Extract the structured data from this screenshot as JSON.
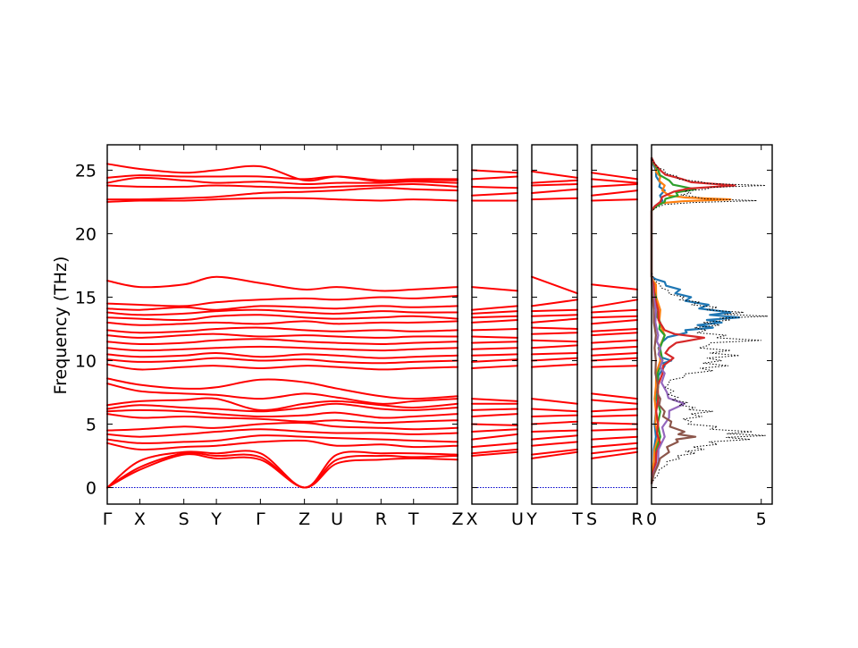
{
  "chart_data": {
    "type": "line",
    "ylabel": "Frequency (THz)",
    "ylim": [
      -1.3,
      27
    ],
    "yticks": [
      0,
      5,
      10,
      15,
      20,
      25
    ],
    "dos_xlim": [
      0,
      5.5
    ],
    "dos_xticks": [
      0,
      5
    ],
    "dos_xtick_labels": [
      "0",
      "5"
    ],
    "path_segments": [
      {
        "labels": [
          "Γ",
          "X",
          "S",
          "Y",
          "Γ",
          "Z",
          "U",
          "R",
          "T",
          "Z"
        ],
        "positions": [
          0,
          0.85,
          2.0,
          2.85,
          4.0,
          5.15,
          6.0,
          7.15,
          8.0,
          9.15
        ]
      },
      {
        "labels": [
          "X",
          "U"
        ],
        "positions": [
          0,
          1.15
        ]
      },
      {
        "labels": [
          "Y",
          "T"
        ],
        "positions": [
          0,
          1.15
        ]
      },
      {
        "labels": [
          "S",
          "R"
        ],
        "positions": [
          0,
          1.15
        ]
      }
    ],
    "band_color": "#ff0000",
    "zero_line_color": "#0000cc",
    "dos_colors": [
      "#1f77b4",
      "#ff7f0e",
      "#2ca02c",
      "#d62728",
      "#9467bd",
      "#8c564b"
    ],
    "bands_main": [
      [
        0,
        1.4,
        2.6,
        2.3,
        2.2,
        0,
        1.9,
        2.2,
        2.3,
        2.2
      ],
      [
        0,
        1.6,
        2.7,
        2.5,
        2.4,
        0,
        2.2,
        2.5,
        2.4,
        2.5
      ],
      [
        0,
        2.1,
        2.8,
        2.7,
        2.7,
        0,
        2.6,
        2.7,
        2.7,
        2.6
      ],
      [
        3.5,
        3.0,
        3.2,
        3.3,
        3.6,
        3.7,
        3.3,
        3.4,
        3.2,
        3.3
      ],
      [
        3.8,
        3.5,
        3.6,
        3.7,
        4.1,
        4.0,
        3.9,
        3.8,
        3.7,
        3.6
      ],
      [
        4.2,
        4.0,
        4.2,
        4.4,
        4.6,
        4.4,
        4.3,
        4.3,
        4.2,
        4.3
      ],
      [
        4.5,
        4.6,
        4.8,
        4.7,
        5.0,
        5.1,
        4.8,
        4.7,
        4.6,
        4.7
      ],
      [
        5.8,
        5.5,
        5.6,
        5.5,
        5.4,
        5.2,
        5.3,
        5.1,
        5.2,
        5.3
      ],
      [
        6.0,
        6.1,
        6.0,
        5.8,
        5.6,
        5.7,
        5.9,
        5.5,
        5.6,
        5.8
      ],
      [
        6.2,
        6.5,
        6.3,
        6.2,
        6.0,
        6.3,
        6.6,
        6.2,
        6.1,
        6.3
      ],
      [
        6.5,
        6.8,
        6.9,
        7.0,
        6.1,
        6.6,
        6.8,
        6.5,
        6.3,
        6.6
      ],
      [
        8.2,
        7.6,
        7.4,
        7.3,
        7.0,
        7.4,
        7.1,
        6.6,
        6.8,
        7.0
      ],
      [
        8.6,
        8.1,
        7.8,
        7.9,
        8.5,
        8.3,
        7.8,
        7.2,
        7.0,
        7.2
      ],
      [
        9.7,
        9.3,
        9.5,
        9.6,
        9.4,
        9.6,
        9.5,
        9.3,
        9.4,
        9.5
      ],
      [
        10.1,
        9.9,
        10.0,
        10.2,
        10.0,
        10.1,
        9.9,
        9.8,
        9.9,
        10.0
      ],
      [
        10.5,
        10.3,
        10.4,
        10.6,
        10.3,
        10.5,
        10.4,
        10.2,
        10.3,
        10.4
      ],
      [
        11.0,
        10.8,
        10.9,
        11.0,
        11.1,
        11.0,
        10.9,
        10.8,
        10.9,
        11.0
      ],
      [
        11.5,
        11.3,
        11.4,
        11.6,
        11.7,
        11.5,
        11.4,
        11.3,
        11.4,
        11.5
      ],
      [
        12.0,
        11.8,
        12.0,
        12.1,
        11.9,
        12.0,
        11.9,
        11.8,
        11.9,
        11.9
      ],
      [
        12.4,
        12.2,
        12.3,
        12.5,
        12.6,
        12.4,
        12.3,
        12.4,
        12.3,
        12.4
      ],
      [
        13.0,
        12.8,
        12.9,
        13.0,
        12.9,
        13.1,
        12.9,
        13.0,
        13.0,
        13.1
      ],
      [
        13.4,
        13.3,
        13.2,
        13.5,
        13.6,
        13.4,
        13.3,
        13.4,
        13.5,
        13.3
      ],
      [
        13.8,
        13.6,
        13.7,
        13.9,
        14.0,
        13.8,
        13.7,
        13.9,
        13.8,
        13.8
      ],
      [
        14.1,
        14.0,
        14.2,
        14.0,
        14.3,
        14.2,
        14.1,
        14.3,
        14.2,
        14.3
      ],
      [
        14.5,
        14.4,
        14.3,
        14.6,
        14.8,
        14.9,
        14.8,
        15.0,
        14.9,
        15.1
      ],
      [
        16.3,
        15.8,
        16.0,
        16.6,
        16.1,
        15.6,
        15.8,
        15.5,
        15.6,
        15.8
      ],
      [
        22.5,
        22.6,
        22.6,
        22.7,
        22.8,
        22.8,
        22.7,
        22.6,
        22.7,
        22.6
      ],
      [
        22.7,
        22.7,
        22.8,
        22.9,
        23.2,
        23.3,
        23.4,
        23.6,
        23.5,
        23.4
      ],
      [
        23.8,
        23.7,
        23.7,
        23.8,
        23.7,
        23.6,
        23.7,
        23.8,
        23.9,
        23.7
      ],
      [
        24.0,
        24.4,
        24.2,
        24.0,
        24.1,
        23.9,
        24.0,
        24.0,
        24.1,
        24.0
      ],
      [
        24.4,
        24.6,
        24.5,
        24.5,
        24.5,
        24.3,
        24.5,
        24.1,
        24.2,
        24.2
      ],
      [
        25.5,
        25.1,
        24.8,
        25.0,
        25.3,
        24.2,
        24.5,
        24.2,
        24.3,
        24.3
      ]
    ],
    "bands_xu": [
      [
        2.5,
        2.8
      ],
      [
        2.7,
        3.0
      ],
      [
        3.2,
        3.5
      ],
      [
        3.8,
        4.2
      ],
      [
        4.4,
        4.6
      ],
      [
        5.0,
        4.9
      ],
      [
        5.6,
        5.8
      ],
      [
        6.1,
        6.2
      ],
      [
        6.6,
        6.6
      ],
      [
        7.0,
        6.8
      ],
      [
        9.4,
        9.6
      ],
      [
        9.9,
        10.1
      ],
      [
        10.4,
        10.5
      ],
      [
        10.9,
        11.0
      ],
      [
        11.4,
        11.5
      ],
      [
        11.9,
        11.8
      ],
      [
        12.4,
        12.5
      ],
      [
        13.0,
        13.2
      ],
      [
        13.4,
        13.5
      ],
      [
        13.7,
        13.9
      ],
      [
        14.0,
        14.3
      ],
      [
        15.8,
        15.5
      ],
      [
        22.6,
        22.6
      ],
      [
        23.0,
        23.2
      ],
      [
        23.7,
        23.6
      ],
      [
        24.3,
        24.5
      ],
      [
        25.0,
        24.8
      ]
    ],
    "bands_yt": [
      [
        2.3,
        2.8
      ],
      [
        2.6,
        3.0
      ],
      [
        3.3,
        3.6
      ],
      [
        3.8,
        4.1
      ],
      [
        4.4,
        4.5
      ],
      [
        5.0,
        5.2
      ],
      [
        5.6,
        5.7
      ],
      [
        6.2,
        6.0
      ],
      [
        7.0,
        6.6
      ],
      [
        9.5,
        9.7
      ],
      [
        10.0,
        10.2
      ],
      [
        10.5,
        10.6
      ],
      [
        11.0,
        11.2
      ],
      [
        11.6,
        11.5
      ],
      [
        12.1,
        12.2
      ],
      [
        12.6,
        12.5
      ],
      [
        13.0,
        13.3
      ],
      [
        13.5,
        13.6
      ],
      [
        13.9,
        14.0
      ],
      [
        14.3,
        14.8
      ],
      [
        16.6,
        15.3
      ],
      [
        22.7,
        22.8
      ],
      [
        23.2,
        23.5
      ],
      [
        23.8,
        23.9
      ],
      [
        24.0,
        24.2
      ],
      [
        24.9,
        24.4
      ]
    ],
    "bands_sr": [
      [
        2.3,
        2.8
      ],
      [
        2.7,
        3.1
      ],
      [
        3.2,
        3.5
      ],
      [
        3.8,
        4.0
      ],
      [
        4.5,
        4.6
      ],
      [
        5.1,
        5.0
      ],
      [
        5.6,
        5.7
      ],
      [
        6.0,
        6.2
      ],
      [
        6.9,
        6.6
      ],
      [
        7.4,
        7.0
      ],
      [
        9.5,
        9.6
      ],
      [
        10.0,
        10.2
      ],
      [
        10.4,
        10.6
      ],
      [
        10.9,
        11.1
      ],
      [
        11.4,
        11.6
      ],
      [
        12.0,
        12.2
      ],
      [
        12.3,
        12.5
      ],
      [
        12.9,
        13.2
      ],
      [
        13.4,
        13.5
      ],
      [
        13.8,
        14.0
      ],
      [
        14.2,
        14.8
      ],
      [
        16.0,
        15.6
      ],
      [
        22.6,
        22.7
      ],
      [
        23.0,
        23.4
      ],
      [
        23.7,
        23.9
      ],
      [
        24.3,
        24.0
      ],
      [
        24.8,
        24.3
      ]
    ],
    "dos_total": {
      "freq": [
        0.3,
        1.0,
        1.8,
        2.3,
        2.7,
        3.0,
        3.4,
        3.8,
        4.1,
        4.4,
        4.8,
        5.2,
        5.6,
        6.0,
        6.3,
        6.7,
        7.1,
        7.6,
        8.2,
        8.7,
        9.2,
        9.6,
        10.0,
        10.4,
        10.8,
        11.2,
        11.6,
        12.0,
        12.4,
        12.8,
        13.2,
        13.5,
        13.8,
        14.2,
        14.6,
        15.0,
        15.5,
        16.0,
        16.5,
        17.0,
        21.8,
        22.3,
        22.6,
        22.9,
        23.2,
        23.5,
        23.8,
        24.1,
        24.5,
        25.0,
        25.4,
        26.0
      ],
      "density": [
        0,
        0.3,
        0.7,
        1.3,
        2.0,
        2.4,
        3.0,
        4.5,
        5.2,
        4.6,
        3.0,
        1.8,
        2.3,
        2.8,
        2.0,
        1.6,
        1.2,
        1.0,
        0.8,
        1.5,
        2.8,
        3.5,
        3.2,
        4.0,
        3.6,
        2.6,
        5.0,
        3.4,
        2.5,
        3.1,
        3.6,
        5.3,
        4.2,
        3.0,
        2.2,
        1.5,
        0.8,
        0.4,
        0.1,
        0,
        0,
        0.6,
        4.8,
        2.0,
        1.8,
        2.5,
        5.2,
        2.2,
        1.2,
        0.6,
        0.2,
        0
      ]
    },
    "dos_projected": [
      {
        "freq": [
          0.3,
          2.0,
          4.0,
          6.0,
          8.0,
          9.6,
          10.0,
          10.5,
          11.5,
          12.2,
          12.6,
          13.0,
          13.4,
          13.8,
          14.4,
          15.0,
          15.6,
          16.2,
          16.6,
          21.8,
          22.6,
          23.4,
          24.0,
          25.0,
          26.0
        ],
        "density": [
          0,
          0.1,
          0.2,
          0.2,
          0.3,
          0.6,
          0.9,
          0.4,
          0.5,
          1.6,
          2.8,
          3.2,
          4.0,
          3.6,
          2.6,
          1.8,
          1.3,
          0.6,
          0,
          0,
          0.5,
          0.6,
          0.4,
          0.2,
          0
        ]
      },
      {
        "freq": [
          0.3,
          2.0,
          4.0,
          6.0,
          8.0,
          10.0,
          12.0,
          14.0,
          16.0,
          16.6,
          21.8,
          22.4,
          22.7,
          23.0,
          23.8,
          24.5,
          25.2,
          26.0
        ],
        "density": [
          0,
          0.1,
          0.3,
          0.2,
          0.2,
          0.4,
          0.6,
          0.4,
          0.2,
          0,
          0,
          0.4,
          3.6,
          0.8,
          0.6,
          0.4,
          0.2,
          0
        ]
      },
      {
        "freq": [
          0.3,
          2.0,
          4.0,
          6.0,
          8.0,
          10.0,
          12.0,
          13.0,
          14.0,
          15.0,
          16.0,
          16.6,
          21.8,
          22.5,
          23.0,
          23.5,
          24.2,
          25.0,
          26.0
        ],
        "density": [
          0,
          0.2,
          0.4,
          0.4,
          0.3,
          0.5,
          0.6,
          0.4,
          0.3,
          0.2,
          0.1,
          0,
          0,
          0.6,
          1.2,
          2.0,
          0.8,
          0.3,
          0
        ]
      },
      {
        "freq": [
          0.3,
          2.0,
          3.5,
          5.0,
          7.0,
          9.0,
          10.2,
          11.0,
          11.8,
          12.4,
          14.0,
          16.0,
          16.6,
          21.8,
          22.5,
          23.3,
          23.8,
          24.3,
          25.0,
          26.0
        ],
        "density": [
          0,
          0.2,
          0.4,
          0.3,
          0.3,
          0.5,
          1.0,
          0.8,
          2.4,
          0.6,
          0.3,
          0.1,
          0,
          0,
          0.4,
          1.0,
          3.8,
          1.4,
          0.4,
          0
        ]
      },
      {
        "freq": [
          0.3,
          2.0,
          4.0,
          5.5,
          6.6,
          7.5,
          9.0,
          10.0,
          11.0,
          12.0,
          14.0,
          16.6,
          21.8,
          26.0
        ],
        "density": [
          0,
          0.3,
          0.6,
          0.8,
          1.5,
          0.7,
          0.6,
          0.5,
          0.4,
          0.3,
          0.2,
          0,
          0,
          0
        ]
      },
      {
        "freq": [
          0.3,
          1.8,
          2.8,
          3.6,
          4.0,
          4.4,
          5.2,
          6.0,
          7.0,
          8.0,
          10.0,
          12.0,
          14.0,
          16.6,
          21.8,
          26.0
        ],
        "density": [
          0,
          0.3,
          0.8,
          1.2,
          2.0,
          1.5,
          0.9,
          0.6,
          0.4,
          0.3,
          0.2,
          0.2,
          0.1,
          0,
          0,
          0
        ]
      }
    ]
  }
}
